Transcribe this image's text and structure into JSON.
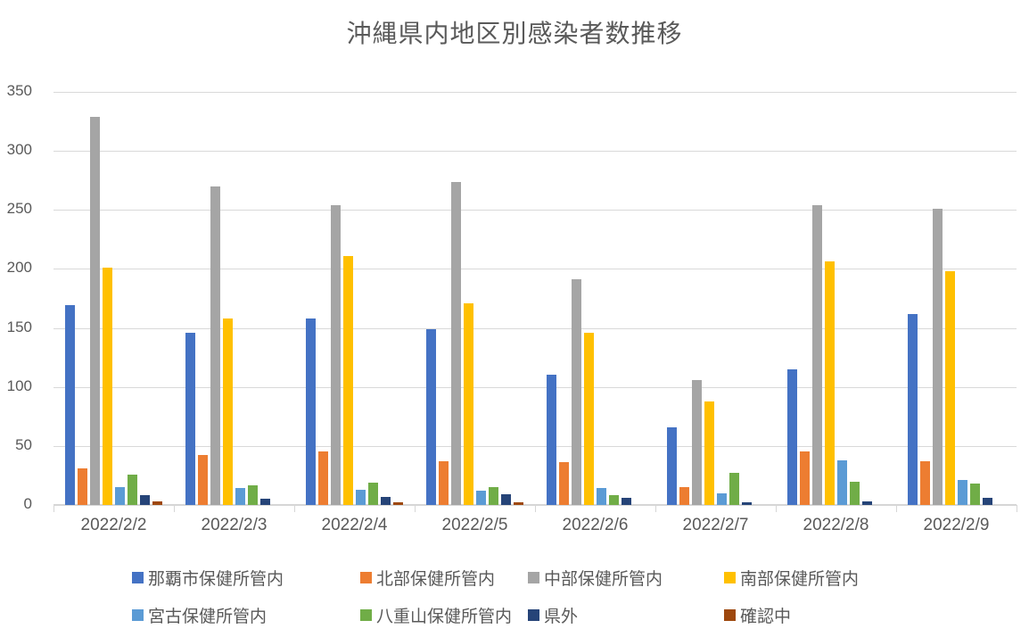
{
  "chart_data": {
    "type": "bar",
    "title": "沖縄県内地区別感染者数推移",
    "xlabel": "",
    "ylabel": "",
    "ylim": [
      0,
      350
    ],
    "ytick_interval": 50,
    "yticks": [
      0,
      50,
      100,
      150,
      200,
      250,
      300,
      350
    ],
    "grid": true,
    "legend_position": "bottom",
    "categories": [
      "2022/2/2",
      "2022/2/3",
      "2022/2/4",
      "2022/2/5",
      "2022/2/6",
      "2022/2/7",
      "2022/2/8",
      "2022/2/9"
    ],
    "series": [
      {
        "name": "那覇市保健所管内",
        "color": "#4472C4",
        "values": [
          169,
          146,
          158,
          149,
          110,
          66,
          115,
          162
        ]
      },
      {
        "name": "北部保健所管内",
        "color": "#ED7D31",
        "values": [
          31,
          42,
          45,
          37,
          36,
          15,
          45,
          37
        ]
      },
      {
        "name": "中部保健所管内",
        "color": "#A5A5A5",
        "values": [
          329,
          270,
          254,
          274,
          191,
          106,
          254,
          251
        ]
      },
      {
        "name": "南部保健所管内",
        "color": "#FFC000",
        "values": [
          201,
          158,
          211,
          171,
          146,
          88,
          206,
          198
        ]
      },
      {
        "name": "宮古保健所管内",
        "color": "#5B9BD5",
        "values": [
          15,
          14,
          13,
          12,
          14,
          10,
          38,
          21
        ]
      },
      {
        "name": "八重山保健所管内",
        "color": "#70AD47",
        "values": [
          26,
          17,
          19,
          15,
          8,
          27,
          20,
          18
        ]
      },
      {
        "name": "県外",
        "color": "#264478",
        "values": [
          8,
          5,
          7,
          9,
          6,
          2,
          3,
          6
        ]
      },
      {
        "name": "確認中",
        "color": "#9E480E",
        "values": [
          3,
          0,
          2,
          2,
          0,
          0,
          0,
          0
        ]
      }
    ],
    "colors": {
      "gridline": "#D9D9D9",
      "axis_line": "#D6D6D6",
      "text": "#595959",
      "background": "#FFFFFF"
    }
  }
}
